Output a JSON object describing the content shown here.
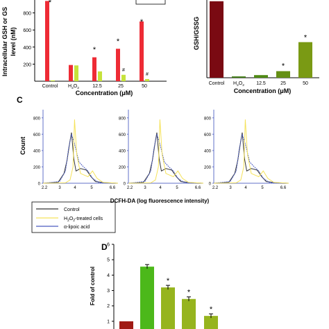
{
  "chart_data": [
    {
      "panel": "",
      "type": "bar",
      "ylabel_lines": [
        "Intracellular GSH or GS",
        "level (nM)"
      ],
      "xlabel": "Concentration (μM)",
      "categories": [
        "Control",
        "H2O2",
        "12.5",
        "25",
        "50"
      ],
      "series": [
        {
          "values": [
            940,
            190,
            280,
            380,
            700
          ],
          "color": "#ee2b35"
        },
        {
          "values": [
            10,
            185,
            115,
            75,
            25
          ],
          "color": "#c6e23b"
        }
      ],
      "ytick_labels": [
        "200",
        "400",
        "600",
        "800"
      ],
      "ylim": [
        0,
        1000
      ],
      "annotations": [
        "*",
        "*",
        "*",
        "#",
        "#"
      ]
    },
    {
      "panel": "",
      "type": "bar",
      "ylabel": "GSH/GSSG",
      "xlabel": "Concentration (μM)",
      "categories": [
        "Control",
        "H2O2",
        "12.5",
        "25",
        "50"
      ],
      "values": [
        58,
        1,
        2,
        5,
        27
      ],
      "colors": [
        "#7a0a12",
        "#3d7a12",
        "#4f8a14",
        "#648f14",
        "#7a9a14"
      ],
      "ylim": [
        0,
        60
      ],
      "annotations": [
        "*",
        "*"
      ]
    },
    {
      "panel": "C",
      "type": "line",
      "ylabel": "Count",
      "xlabel": "DCFH-DA (log fluorescence intensity)",
      "ytick_labels": [
        "0",
        "200",
        "400",
        "600",
        "800"
      ],
      "xtick_labels": [
        "2.2",
        "3",
        "4",
        "5",
        "6.6"
      ],
      "legend": [
        "Control",
        "H2O2-treated cells",
        "α-lipoic acid"
      ],
      "legend_colors": [
        "#333333",
        "#f5e25a",
        "#4a5bc0"
      ]
    },
    {
      "panel": "D",
      "type": "bar",
      "ylabel": "Fold of control",
      "values": [
        1.0,
        4.55,
        3.2,
        2.45,
        1.35
      ],
      "colors": [
        "#a01a14",
        "#4cb81a",
        "#96b41e",
        "#96b41e",
        "#96b41e"
      ],
      "ytick_labels": [
        "1",
        "2",
        "3",
        "4",
        "5",
        "6"
      ],
      "ylim": [
        0.5,
        6
      ],
      "annotations": [
        "*",
        "*",
        "*"
      ]
    }
  ],
  "text": {
    "panel_c": "C",
    "panel_d": "D",
    "h2o2": "H",
    "h2o2_sub": "2",
    "h2o2_o": "O",
    "legend_c1": "Control",
    "legend_c2a": "H",
    "legend_c2b": "2",
    "legend_c2c": "O",
    "legend_c2d": "-treated cells",
    "legend_c3": "α-lipoic acid"
  }
}
